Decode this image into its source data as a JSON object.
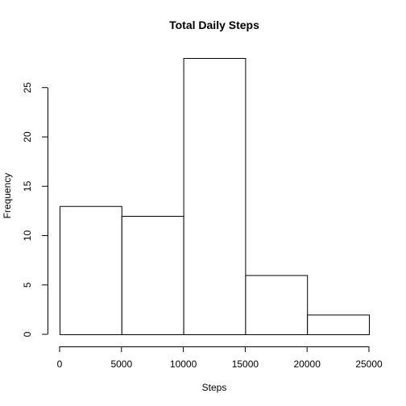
{
  "chart_data": {
    "type": "bar",
    "title": "Total Daily Steps",
    "xlabel": "Steps",
    "ylabel": "Frequency",
    "bins": [
      {
        "start": 0,
        "end": 5000,
        "count": 13
      },
      {
        "start": 5000,
        "end": 10000,
        "count": 12
      },
      {
        "start": 10000,
        "end": 15000,
        "count": 28
      },
      {
        "start": 15000,
        "end": 20000,
        "count": 6
      },
      {
        "start": 20000,
        "end": 25000,
        "count": 2
      }
    ],
    "xlim": [
      0,
      25000
    ],
    "ylim": [
      0,
      28
    ],
    "x_ticks": [
      0,
      5000,
      10000,
      15000,
      20000,
      25000
    ],
    "y_ticks": [
      0,
      5,
      10,
      15,
      20,
      25
    ],
    "grid": false,
    "bar_fill": "#ffffff",
    "bar_stroke": "#000000"
  }
}
